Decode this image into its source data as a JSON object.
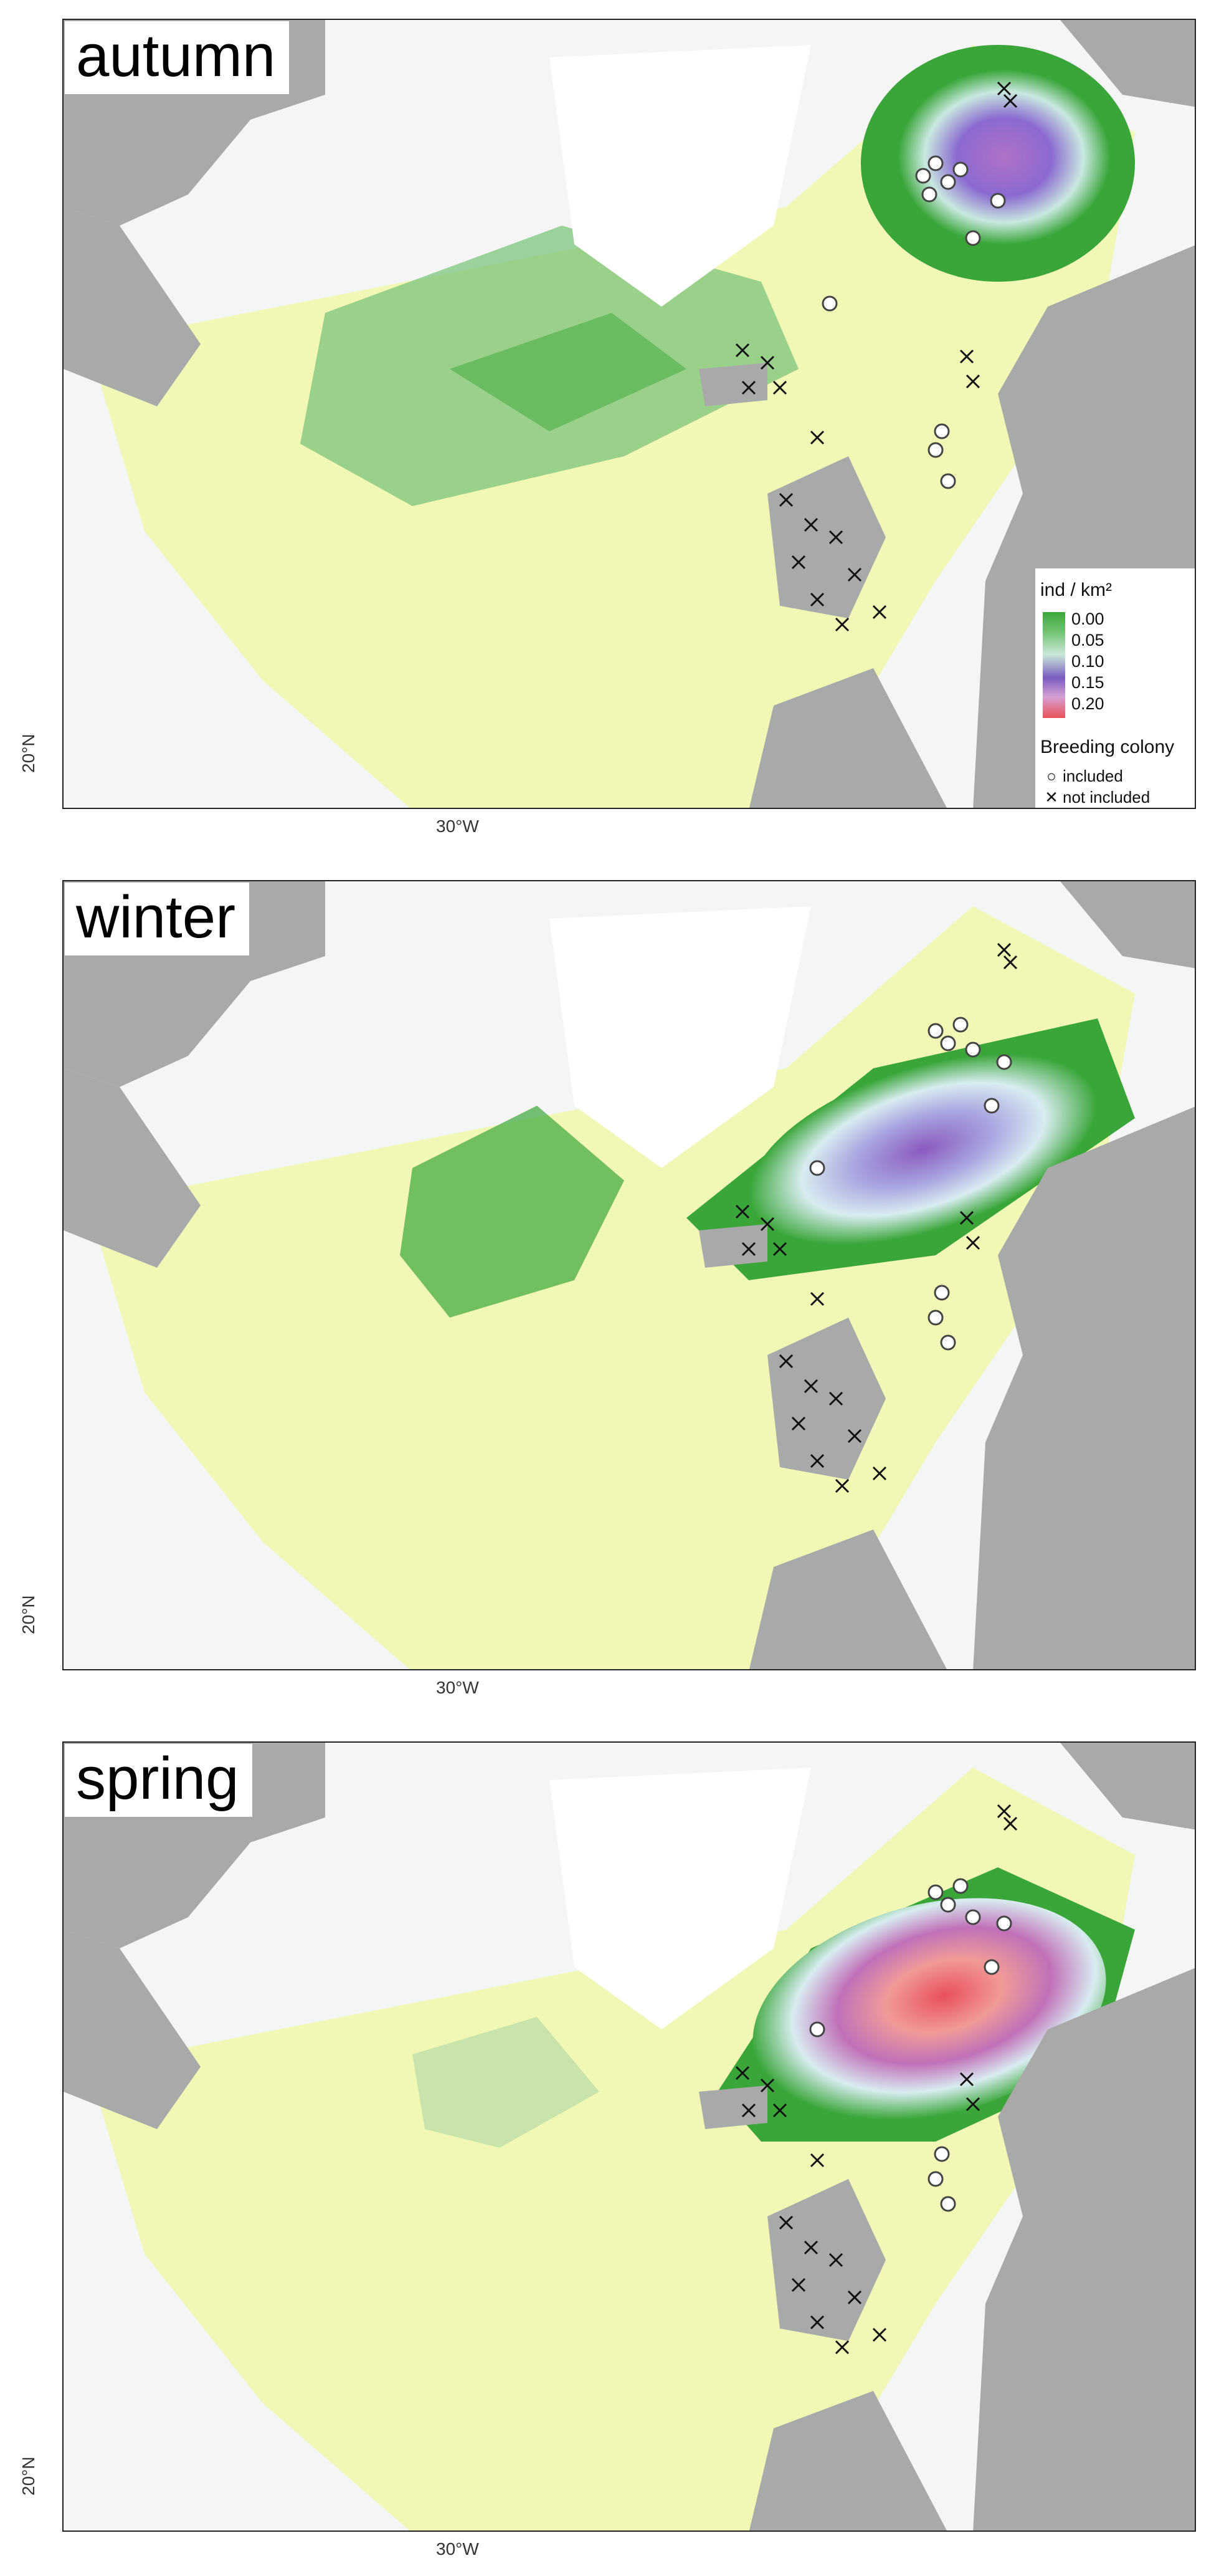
{
  "panels": [
    {
      "season": "autumn",
      "lat_label": "20°N",
      "lon_label": "30°W"
    },
    {
      "season": "winter",
      "lat_label": "20°N",
      "lon_label": "30°W"
    },
    {
      "season": "spring",
      "lat_label": "20°N",
      "lon_label": "30°W"
    }
  ],
  "legend": {
    "title": "ind / km²",
    "ticks": [
      "0.00",
      "0.05",
      "0.10",
      "0.15",
      "0.20"
    ],
    "colony_title": "Breeding colony",
    "included": "included",
    "not_included": "not included",
    "included_symbol": "circle-icon",
    "not_included_symbol": "cross-icon"
  },
  "colors": {
    "land": "#a9a9a9",
    "ice": "#ffffff",
    "ocean_background": "#f5f5f5",
    "density_low": "#f1f7b5",
    "density_green": "#3aa63a",
    "density_mid": "#c9e8d8",
    "density_purple": "#7a5cc0",
    "density_high": "#e8505a"
  }
}
